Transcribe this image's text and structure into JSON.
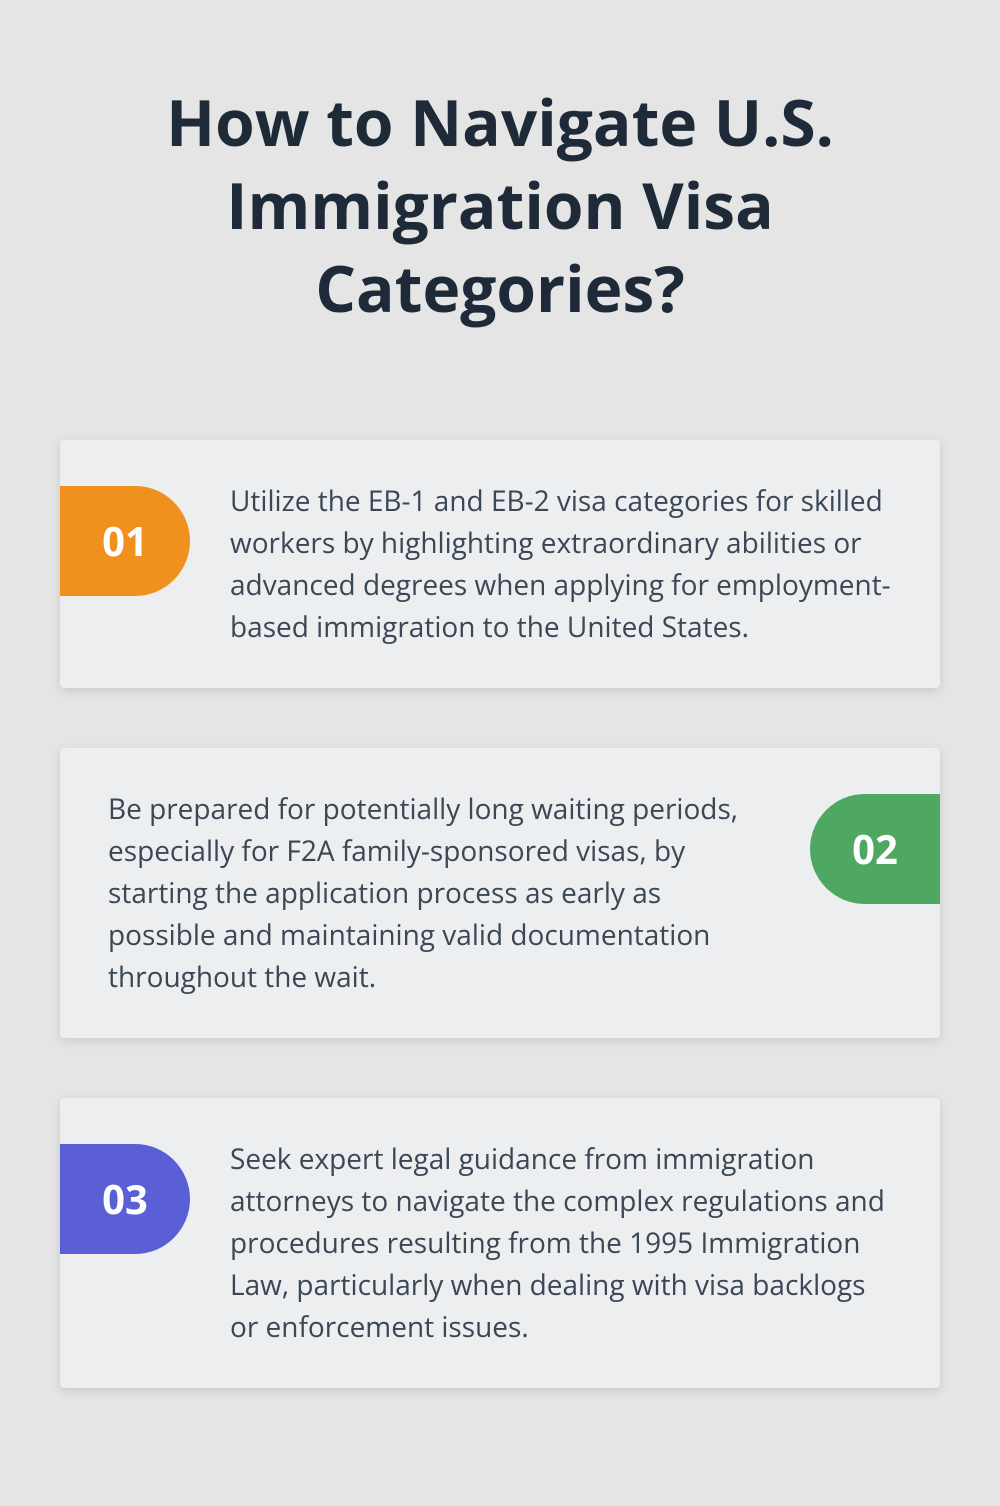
{
  "title": "How to Navigate U.S. Immigration Visa Categories?",
  "layout": {
    "page_bg": "#e5e5e5",
    "card_bg": "#eceef0",
    "title_color": "#1e2a38",
    "body_color": "#3b4755",
    "badge_text_color": "#ffffff",
    "title_fontsize": 64,
    "body_fontsize": 28,
    "badge_fontsize": 40,
    "badge_width": 130,
    "badge_height": 110,
    "card_gap": 60
  },
  "cards": [
    {
      "num": "01",
      "side": "left",
      "color": "#f0911e",
      "text": "Utilize the EB-1 and EB-2 visa categories for skilled workers by highlighting extraordinary abilities or advanced degrees when applying for employment-based immigration to the United States."
    },
    {
      "num": "02",
      "side": "right",
      "color": "#4fa862",
      "text": "Be prepared for potentially long waiting periods, especially for F2A family-sponsored visas, by starting the application process as early as possible and maintaining valid documentation throughout the wait."
    },
    {
      "num": "03",
      "side": "left",
      "color": "#5a5fd6",
      "text": "Seek expert legal guidance from immigration attorneys to navigate the complex regulations and procedures resulting from the 1995 Immigration Law, particularly when dealing with visa backlogs or enforcement issues."
    }
  ]
}
